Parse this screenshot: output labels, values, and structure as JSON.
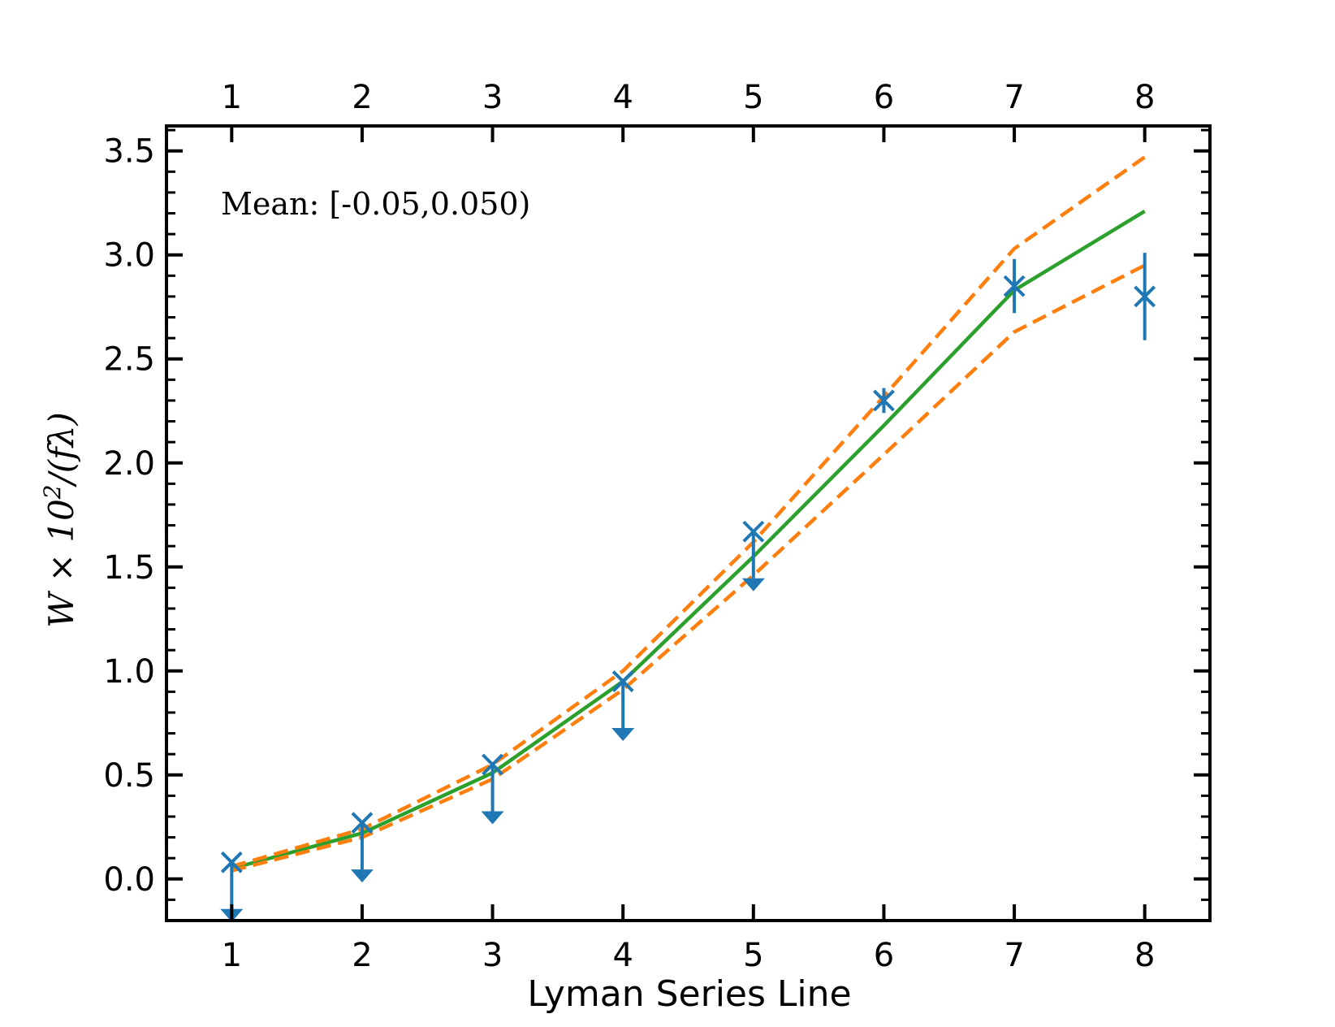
{
  "chart_data": {
    "type": "line",
    "xlabel": "Lyman Series Line",
    "ylabel": {
      "prefix": "W × 10",
      "exponent": "2",
      "suffix": "/(fλ)"
    },
    "annotation": "Mean: [-0.05,0.050)",
    "xlim": [
      0.5,
      8.5
    ],
    "ylim": [
      -0.2,
      3.62
    ],
    "x_ticks": [
      1,
      2,
      3,
      4,
      5,
      6,
      7,
      8
    ],
    "x_tick_labels": [
      "1",
      "2",
      "3",
      "4",
      "5",
      "6",
      "7",
      "8"
    ],
    "y_ticks": [
      0.0,
      0.5,
      1.0,
      1.5,
      2.0,
      2.5,
      3.0,
      3.5
    ],
    "y_tick_labels": [
      "0.0",
      "0.5",
      "1.0",
      "1.5",
      "2.0",
      "2.5",
      "3.0",
      "3.5"
    ],
    "series": [
      {
        "kind": "line",
        "style": "solid",
        "color": "#2ca02c",
        "x": [
          1,
          2,
          3,
          4,
          5,
          6,
          7,
          8
        ],
        "y": [
          0.05,
          0.22,
          0.51,
          0.95,
          1.55,
          2.18,
          2.83,
          3.21
        ]
      },
      {
        "kind": "line",
        "style": "dashed",
        "color": "#ff7f0e",
        "x": [
          1,
          2,
          3,
          4,
          5,
          6,
          7,
          8
        ],
        "y": [
          0.06,
          0.24,
          0.55,
          1.0,
          1.62,
          2.32,
          3.03,
          3.47
        ]
      },
      {
        "kind": "line",
        "style": "dashed",
        "color": "#ff7f0e",
        "x": [
          1,
          2,
          3,
          4,
          5,
          6,
          7,
          8
        ],
        "y": [
          0.04,
          0.2,
          0.48,
          0.91,
          1.46,
          2.04,
          2.63,
          2.95
        ]
      },
      {
        "kind": "points",
        "marker": "x",
        "color": "#1f77b4",
        "points": [
          {
            "x": 1,
            "y": 0.08,
            "upper_limit": true
          },
          {
            "x": 2,
            "y": 0.27,
            "upper_limit": true
          },
          {
            "x": 3,
            "y": 0.55,
            "upper_limit": true
          },
          {
            "x": 4,
            "y": 0.95,
            "upper_limit": true
          },
          {
            "x": 5,
            "y": 1.67,
            "upper_limit": true
          },
          {
            "x": 6,
            "y": 2.3,
            "yerr": 0.06
          },
          {
            "x": 7,
            "y": 2.85,
            "yerr": 0.13
          },
          {
            "x": 8,
            "y": 2.8,
            "yerr": 0.21
          }
        ]
      }
    ]
  }
}
